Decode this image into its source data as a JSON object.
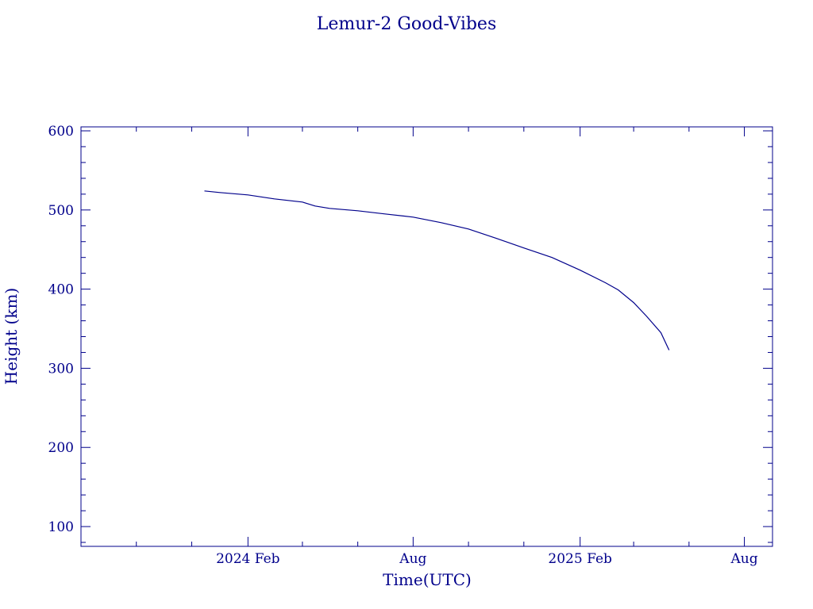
{
  "chart_data": {
    "type": "line",
    "title": "Lemur-2 Good-Vibes",
    "xlabel": "Time(UTC)",
    "ylabel": "Height (km)",
    "x_ticks": [
      {
        "label": "2024 Feb",
        "date": "2024-02-01"
      },
      {
        "label": "Aug",
        "date": "2024-08-01"
      },
      {
        "label": "2025 Feb",
        "date": "2025-02-01"
      },
      {
        "label": "Aug",
        "date": "2025-08-01"
      }
    ],
    "y_ticks": [
      100,
      200,
      300,
      400,
      500,
      600
    ],
    "xlim": [
      "2023-08-01",
      "2025-09-01"
    ],
    "ylim": [
      75,
      605
    ],
    "grid": false,
    "color": "#00008b",
    "series": [
      {
        "points": [
          [
            "2023-12-15",
            524
          ],
          [
            "2024-01-01",
            522
          ],
          [
            "2024-02-01",
            519
          ],
          [
            "2024-03-01",
            514
          ],
          [
            "2024-04-01",
            510
          ],
          [
            "2024-04-15",
            505
          ],
          [
            "2024-05-01",
            502
          ],
          [
            "2024-06-01",
            499
          ],
          [
            "2024-07-01",
            495
          ],
          [
            "2024-08-01",
            491
          ],
          [
            "2024-09-01",
            484
          ],
          [
            "2024-10-01",
            476
          ],
          [
            "2024-11-01",
            464
          ],
          [
            "2024-12-01",
            452
          ],
          [
            "2025-01-01",
            440
          ],
          [
            "2025-02-01",
            424
          ],
          [
            "2025-03-01",
            408
          ],
          [
            "2025-03-15",
            399
          ],
          [
            "2025-04-01",
            383
          ],
          [
            "2025-04-15",
            366
          ],
          [
            "2025-05-01",
            345
          ],
          [
            "2025-05-10",
            323
          ]
        ]
      }
    ]
  }
}
